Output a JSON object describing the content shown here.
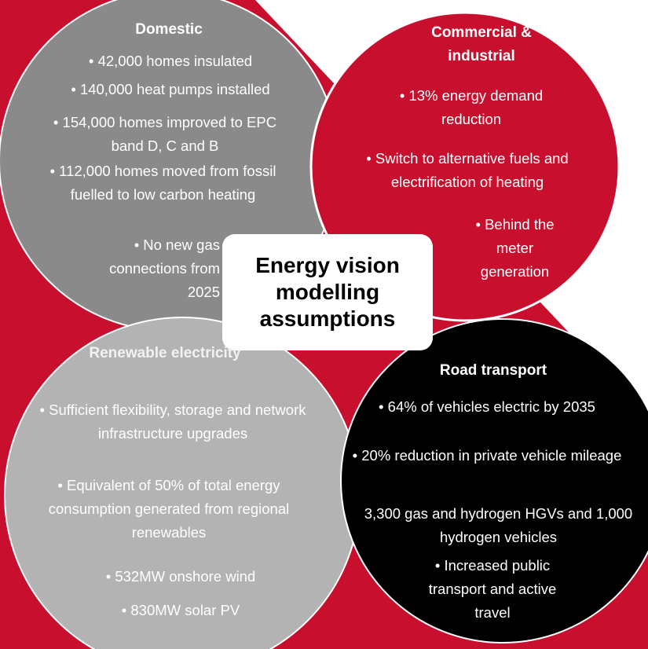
{
  "center_title": "Energy vision modelling assumptions",
  "circles": [
    {
      "title": "Domestic",
      "items": [
        "• 42,000 homes insulated",
        "• 140,000 heat pumps installed",
        "• 154,000 homes improved to EPC band D, C and B",
        "• 112,000 homes moved from fossil fuelled to low carbon heating",
        "• No new gas connections from 2025"
      ]
    },
    {
      "title": "Commercial & industrial",
      "items": [
        "• 13% energy demand reduction",
        "• Switch to alternative fuels and electrification of heating",
        "• Behind the meter generation"
      ]
    },
    {
      "title": "Renewable electricity",
      "items": [
        "• Sufficient flexibility, storage and network infrastructure upgrades",
        "• Equivalent of 50% of total energy consumption generated from regional renewables",
        "• 532MW onshore wind",
        "• 830MW solar PV"
      ]
    },
    {
      "title": "Road transport",
      "items": [
        "•  64% of vehicles electric by 2035",
        "• 20% reduction in private vehicle mileage",
        "3,300 gas and hydrogen HGVs and 1,000 hydrogen vehicles",
        "• Increased public transport and active travel"
      ]
    }
  ]
}
